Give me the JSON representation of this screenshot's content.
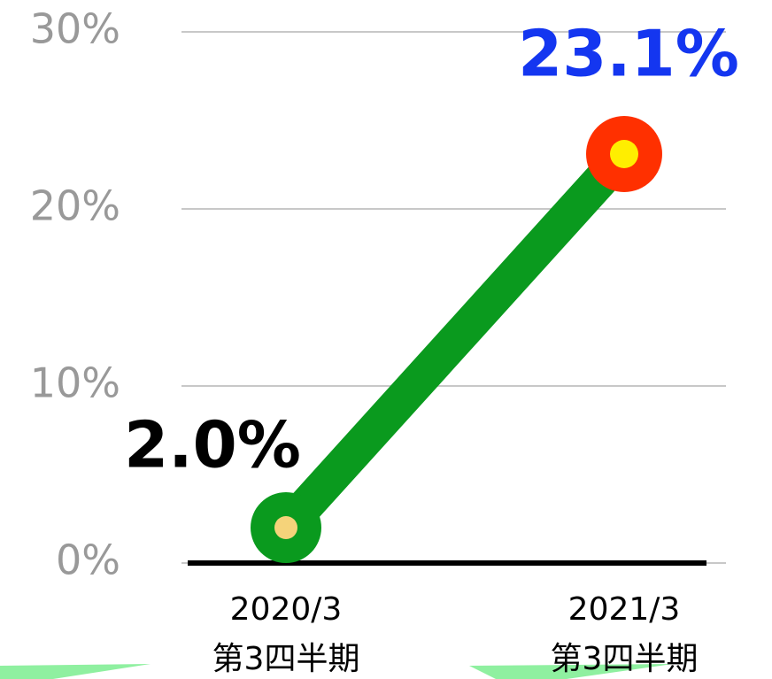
{
  "chart_data": {
    "type": "line",
    "categories": [
      [
        "2020/3",
        "第3四半期"
      ],
      [
        "2021/3",
        "第3四半期"
      ]
    ],
    "series": [
      {
        "values": [
          2.0,
          23.1
        ],
        "value_labels": [
          "2.0%",
          "23.1%"
        ],
        "color": "#0a9a1e",
        "marker_colors": [
          "#0a9a1e",
          "#ff3000"
        ],
        "marker_inner_colors": [
          "#f5d37a",
          "#ffee00"
        ],
        "label_colors": [
          "#000000",
          "#1436f0"
        ]
      }
    ],
    "ylim": [
      0,
      30
    ],
    "yticks": [
      {
        "value": 0,
        "label": "0%"
      },
      {
        "value": 10,
        "label": "10%"
      },
      {
        "value": 20,
        "label": "20%"
      },
      {
        "value": 30,
        "label": "30%"
      }
    ],
    "grid": true
  }
}
